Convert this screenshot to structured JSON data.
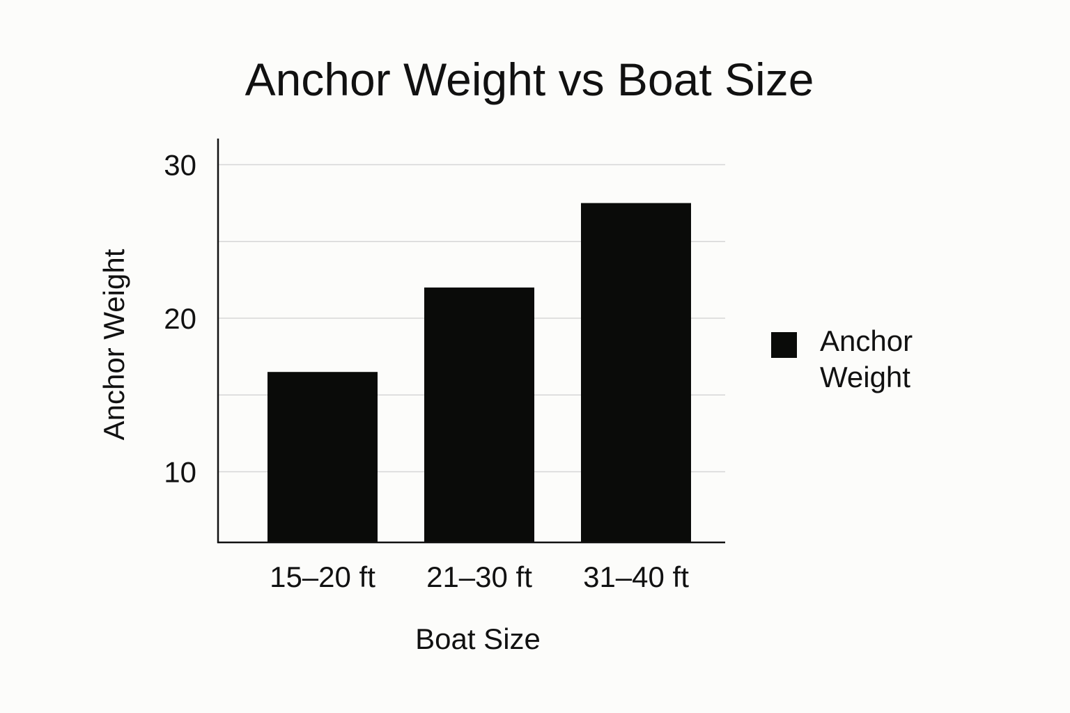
{
  "chart_data": {
    "type": "bar",
    "title": "Anchor Weight vs Boat Size",
    "xlabel": "Boat Size",
    "ylabel": "Anchor Weight",
    "categories": [
      "15–20 ft",
      "21–30 ft",
      "31–40 ft"
    ],
    "series": [
      {
        "name": "Anchor Weight",
        "values": [
          16.5,
          22,
          27.5
        ]
      }
    ],
    "y_ticks": [
      "10",
      "20",
      "30"
    ],
    "ylim": [
      5.4,
      31.7
    ],
    "tick_values": [
      10,
      20,
      30
    ],
    "grid": true,
    "grid_values": [
      10,
      15,
      20,
      25,
      30
    ],
    "legend_position": "right",
    "bar_color": "#0a0b09",
    "axis_color": "#111111",
    "grid_color": "#d6d6d6"
  }
}
